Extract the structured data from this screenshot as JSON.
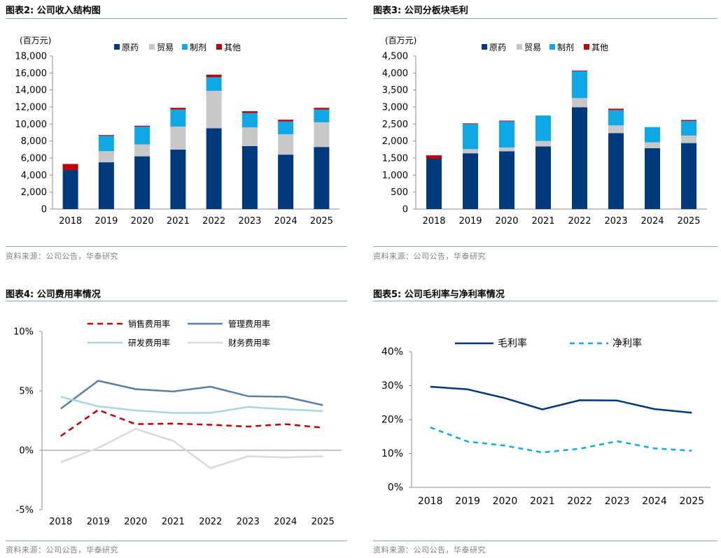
{
  "panels": [
    {
      "title": "图表2:  公司收入结构图",
      "source": "资料来源：公司公告，华泰研究"
    },
    {
      "title": "图表3:  公司分板块毛利",
      "source": "资料来源：公司公告，华泰研究"
    },
    {
      "title": "图表4:  公司费用率情况",
      "source": "资料来源：公司公告，华泰研究"
    },
    {
      "title": "图表5:  公司毛利率与净利率情况",
      "source": "资料来源：公司公告，华泰研究"
    }
  ],
  "chart_data": [
    {
      "type": "bar",
      "stacked": true,
      "unit_label": "(百万元)",
      "categories": [
        "2018",
        "2019",
        "2020",
        "2021",
        "2022",
        "2023",
        "2024",
        "2025"
      ],
      "ylim": [
        0,
        18000
      ],
      "yticks": [
        0,
        2000,
        4000,
        6000,
        8000,
        10000,
        12000,
        14000,
        16000,
        18000
      ],
      "ytick_labels": [
        "0",
        "2,000",
        "4,000",
        "6,000",
        "8,000",
        "10,000",
        "12,000",
        "14,000",
        "16,000",
        "18,000"
      ],
      "series": [
        {
          "name": "原药",
          "color": "#003a7d",
          "values": [
            4600,
            5500,
            6200,
            7000,
            9500,
            7400,
            6400,
            7300
          ]
        },
        {
          "name": "贸易",
          "color": "#c8c8c8",
          "values": [
            0,
            1300,
            1400,
            2700,
            4400,
            2200,
            2400,
            2900
          ]
        },
        {
          "name": "制剂",
          "color": "#10a7e6",
          "values": [
            0,
            1800,
            2100,
            2000,
            1600,
            1700,
            1500,
            1500
          ]
        },
        {
          "name": "其他",
          "color": "#c00000",
          "values": [
            700,
            100,
            100,
            200,
            300,
            200,
            200,
            200
          ]
        }
      ]
    },
    {
      "type": "bar",
      "stacked": true,
      "unit_label": "(百万元)",
      "categories": [
        "2018",
        "2019",
        "2020",
        "2021",
        "2022",
        "2023",
        "2024",
        "2025"
      ],
      "ylim": [
        0,
        4500
      ],
      "yticks": [
        0,
        500,
        1000,
        1500,
        2000,
        2500,
        3000,
        3500,
        4000,
        4500
      ],
      "ytick_labels": [
        "0",
        "500",
        "1,000",
        "1,500",
        "2,000",
        "2,500",
        "3,000",
        "3,500",
        "4,000",
        "4,500"
      ],
      "series": [
        {
          "name": "原药",
          "color": "#003a7d",
          "values": [
            1480,
            1640,
            1700,
            1840,
            2990,
            2230,
            1790,
            1940
          ]
        },
        {
          "name": "贸易",
          "color": "#c8c8c8",
          "values": [
            0,
            120,
            110,
            160,
            270,
            230,
            170,
            220
          ]
        },
        {
          "name": "制剂",
          "color": "#10a7e6",
          "values": [
            0,
            740,
            770,
            750,
            790,
            450,
            450,
            430
          ]
        },
        {
          "name": "其他",
          "color": "#c00000",
          "values": [
            100,
            20,
            20,
            0,
            20,
            40,
            0,
            30
          ]
        }
      ]
    },
    {
      "type": "line",
      "categories": [
        "2018",
        "2019",
        "2020",
        "2021",
        "2022",
        "2023",
        "2024",
        "2025"
      ],
      "ylim": [
        -5,
        10
      ],
      "yticks": [
        -5,
        0,
        5,
        10
      ],
      "ytick_labels": [
        "-5%",
        "0%",
        "5%",
        "10%"
      ],
      "series": [
        {
          "name": "销售费用率",
          "color": "#c00000",
          "dash": "dashed",
          "values": [
            1.2,
            3.4,
            2.2,
            2.25,
            2.15,
            2.0,
            2.2,
            1.9
          ]
        },
        {
          "name": "管理费用率",
          "color": "#5b7ea6",
          "dash": "solid",
          "values": [
            3.5,
            5.85,
            5.15,
            4.95,
            5.35,
            4.55,
            4.5,
            3.8
          ]
        },
        {
          "name": "研发费用率",
          "color": "#a8d5e2",
          "dash": "solid",
          "values": [
            4.5,
            3.7,
            3.35,
            3.15,
            3.15,
            3.65,
            3.45,
            3.3
          ]
        },
        {
          "name": "财务费用率",
          "color": "#d9d9d9",
          "dash": "solid",
          "values": [
            -1.0,
            0.2,
            1.8,
            0.8,
            -1.5,
            -0.5,
            -0.6,
            -0.5
          ]
        }
      ]
    },
    {
      "type": "line",
      "categories": [
        "2018",
        "2019",
        "2020",
        "2021",
        "2022",
        "2023",
        "2024",
        "2025"
      ],
      "ylim": [
        0,
        40
      ],
      "yticks": [
        0,
        10,
        20,
        30,
        40
      ],
      "ytick_labels": [
        "0%",
        "10%",
        "20%",
        "30%",
        "40%"
      ],
      "series": [
        {
          "name": "毛利率",
          "color": "#003a7d",
          "dash": "solid",
          "values": [
            29.7,
            28.9,
            26.3,
            23.0,
            25.7,
            25.6,
            23.1,
            22.0
          ]
        },
        {
          "name": "净利率",
          "color": "#10a7e6",
          "dash": "dashed",
          "values": [
            17.7,
            13.5,
            12.3,
            10.3,
            11.4,
            13.6,
            11.5,
            10.8
          ]
        }
      ]
    }
  ]
}
